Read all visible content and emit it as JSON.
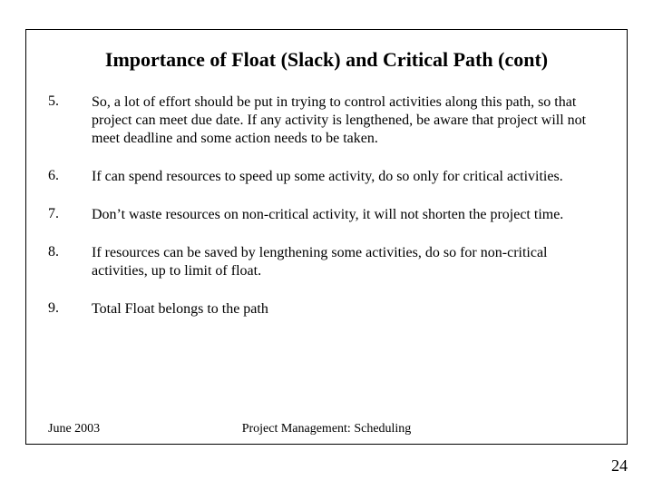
{
  "title": "Importance of Float (Slack) and Critical Path (cont)",
  "items": [
    {
      "num": "5.",
      "text": "So, a lot of effort should be put in trying to control activities along this path, so that project can meet due date. If any activity is lengthened, be aware that project will not meet deadline and some action needs to be taken."
    },
    {
      "num": "6.",
      "text": "If can spend resources to speed up some activity, do so only for critical activities."
    },
    {
      "num": "7.",
      "text": "Don’t waste resources on non-critical activity, it will not shorten the project time."
    },
    {
      "num": "8.",
      "text": "If resources can be saved by lengthening some activities, do so for non-critical activities, up to limit of float."
    },
    {
      "num": "9.",
      "text": "Total Float belongs to the path"
    }
  ],
  "footer": {
    "left": "June 2003",
    "center": "Project Management: Scheduling",
    "page": "24"
  }
}
